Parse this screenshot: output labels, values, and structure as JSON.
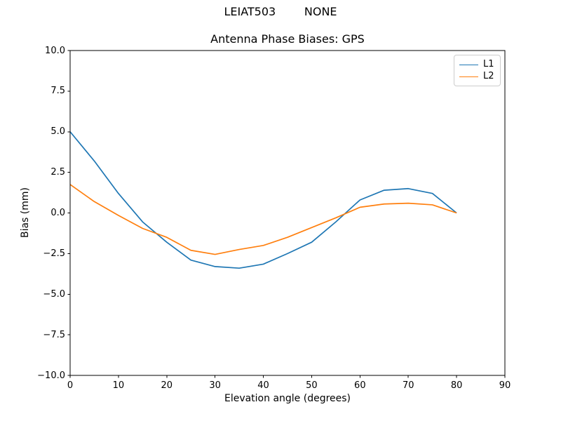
{
  "figure": {
    "suptitle": "LEIAT503        NONE"
  },
  "chart_data": {
    "type": "line",
    "title": "Antenna Phase Biases: GPS",
    "xlabel": "Elevation angle (degrees)",
    "ylabel": "Bias (mm)",
    "xlim": [
      0,
      90
    ],
    "ylim": [
      -10,
      10
    ],
    "x_ticks": [
      0,
      10,
      20,
      30,
      40,
      50,
      60,
      70,
      80,
      90
    ],
    "y_ticks": [
      -10,
      -7.5,
      -5,
      -2.5,
      0,
      2.5,
      5,
      7.5,
      10
    ],
    "grid": false,
    "legend_position": "upper right",
    "background": "#ffffff",
    "axis_color": "#000000",
    "x": [
      0,
      5,
      10,
      15,
      20,
      25,
      30,
      35,
      40,
      45,
      50,
      55,
      60,
      65,
      70,
      75,
      80
    ],
    "series": [
      {
        "name": "L1",
        "color": "#1f77b4",
        "values": [
          5.0,
          3.2,
          1.2,
          -0.55,
          -1.8,
          -2.9,
          -3.3,
          -3.4,
          -3.15,
          -2.5,
          -1.8,
          -0.55,
          0.8,
          1.4,
          1.5,
          1.2,
          0.0
        ]
      },
      {
        "name": "L2",
        "color": "#ff7f0e",
        "values": [
          1.75,
          0.7,
          -0.15,
          -0.95,
          -1.5,
          -2.3,
          -2.55,
          -2.25,
          -2.0,
          -1.5,
          -0.9,
          -0.3,
          0.35,
          0.55,
          0.6,
          0.5,
          0.0
        ]
      }
    ]
  }
}
